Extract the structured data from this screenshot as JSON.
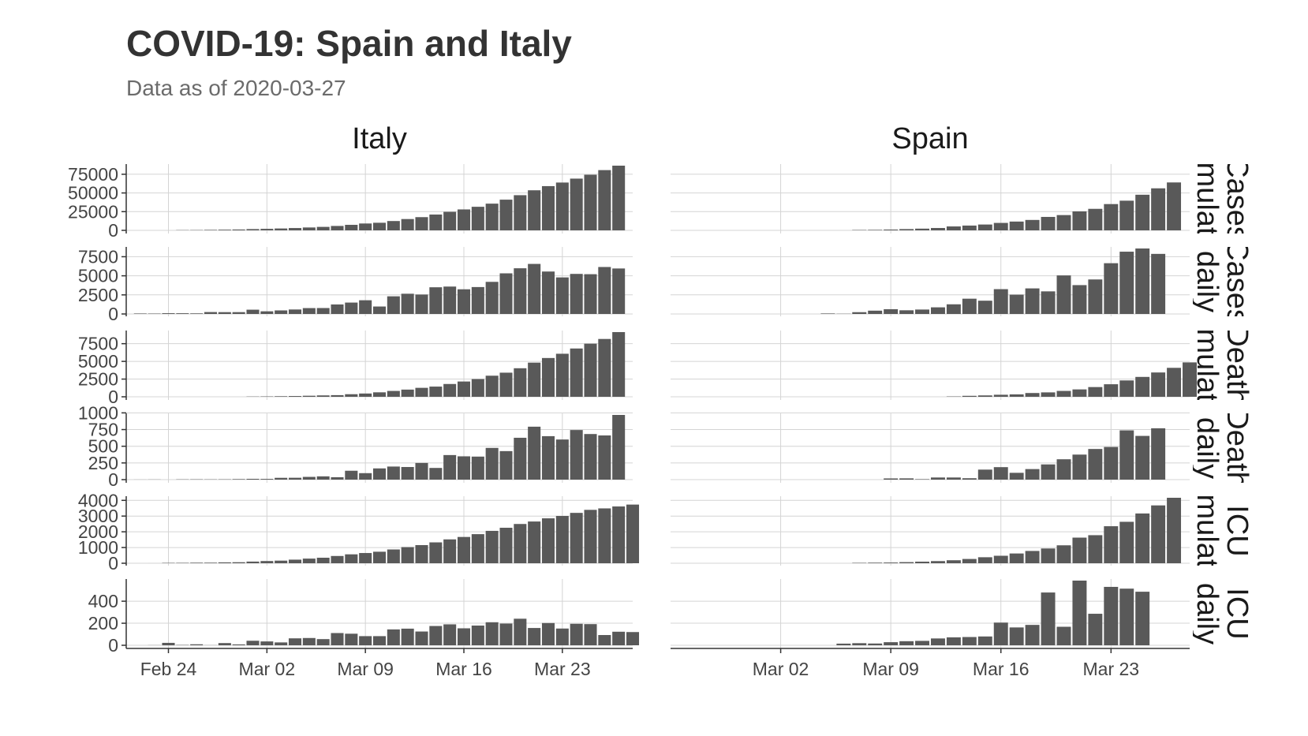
{
  "title": "COVID-19: Spain and Italy",
  "subtitle": "Data as of 2020-03-27",
  "chart_data": {
    "type": "bar",
    "bar_color": "#595959",
    "grid": true,
    "countries": [
      "Italy",
      "Spain"
    ],
    "rows": [
      {
        "label": "Cases cumulative",
        "strip_text": "Cases\nmulat",
        "yticks": [
          0,
          25000,
          50000,
          75000
        ],
        "ylim": [
          0,
          86498
        ]
      },
      {
        "label": "Cases daily",
        "strip_text": "Cases\ndaily",
        "yticks": [
          0,
          2500,
          5000,
          7500
        ],
        "ylim": [
          0,
          8578
        ]
      },
      {
        "label": "Deaths cumulative",
        "strip_text": "Death\nmulat",
        "yticks": [
          0,
          2500,
          5000,
          7500
        ],
        "ylim": [
          0,
          9134
        ]
      },
      {
        "label": "Deaths daily",
        "strip_text": "Death\ndaily",
        "yticks": [
          0,
          250,
          500,
          750,
          1000
        ],
        "ylim": [
          0,
          969
        ]
      },
      {
        "label": "ICU cumulative",
        "strip_text": "ICU\nmulat",
        "yticks": [
          0,
          1000,
          2000,
          3000,
          4000
        ],
        "ylim": [
          0,
          4165
        ]
      },
      {
        "label": "ICU daily",
        "strip_text": "ICU\ndaily",
        "yticks": [
          0,
          200,
          400
        ],
        "ylim": [
          0,
          587
        ]
      }
    ],
    "x_ticks": [
      "Feb 24",
      "Mar 02",
      "Mar 09",
      "Mar 16",
      "Mar 23"
    ],
    "panels": {
      "Italy": {
        "x_start": "2020-02-21",
        "x_end": "2020-03-28",
        "series": [
          {
            "row": "Cases cumulative",
            "start": "2020-02-25",
            "values": [
              322,
              400,
              650,
              888,
              1128,
              1694,
              2036,
              2502,
              3089,
              3858,
              4636,
              5883,
              7375,
              9172,
              10149,
              12462,
              15113,
              17660,
              21157,
              24747,
              27980,
              31506,
              35713,
              41035,
              47021,
              53578,
              59138,
              63927,
              69176,
              74386,
              80539,
              86498
            ]
          },
          {
            "row": "Cases daily",
            "start": "2020-02-22",
            "values": [
              62,
              53,
              97,
              93,
              78,
              250,
              238,
              240,
              561,
              347,
              466,
              587,
              769,
              778,
              1247,
              1492,
              1797,
              977,
              2313,
              2651,
              2547,
              3497,
              3590,
              3233,
              3526,
              4207,
              5322,
              5986,
              6557,
              5560,
              4789,
              5249,
              5210,
              6153,
              5959
            ]
          },
          {
            "row": "Deaths cumulative",
            "start": "2020-03-01",
            "values": [
              34,
              52,
              79,
              107,
              148,
              197,
              233,
              366,
              463,
              631,
              827,
              1016,
              1266,
              1441,
              1809,
              2158,
              2503,
              2978,
              3405,
              4032,
              4825,
              5476,
              6077,
              6820,
              7503,
              8165,
              9134
            ]
          },
          {
            "row": "Deaths daily",
            "start": "2020-02-22",
            "values": [
              1,
              2,
              0,
              4,
              5,
              4,
              5,
              8,
              12,
              11,
              27,
              28,
              41,
              49,
              36,
              133,
              97,
              168,
              196,
              189,
              250,
              175,
              368,
              349,
              345,
              475,
              427,
              627,
              793,
              651,
              601,
              743,
              683,
              662,
              969
            ]
          },
          {
            "row": "ICU cumulative",
            "start": "2020-02-22",
            "values": [
              0,
              1,
              23,
              26,
              35,
              36,
              56,
              64,
              105,
              140,
              166,
              229,
              295,
              351,
              462,
              567,
              650,
              733,
              877,
              1028,
              1153,
              1328,
              1518,
              1672,
              1851,
              2060,
              2257,
              2498,
              2655,
              2857,
              3009,
              3204,
              3396,
              3489,
              3612,
              3732
            ]
          },
          {
            "row": "ICU daily",
            "start": "2020-02-22",
            "values": [
              0,
              1,
              22,
              3,
              9,
              1,
              20,
              8,
              41,
              35,
              26,
              63,
              66,
              56,
              111,
              105,
              83,
              83,
              144,
              151,
              125,
              175,
              190,
              154,
              179,
              209,
              197,
              241,
              157,
              202,
              152,
              195,
              192,
              93,
              123,
              120
            ]
          }
        ]
      },
      "Spain": {
        "x_start": "2020-02-24",
        "x_end": "2020-03-28",
        "series": [
          {
            "row": "Cases cumulative",
            "start": "2020-03-07",
            "values": [
              500,
              673,
              1073,
              1695,
              2277,
              3146,
              5232,
              6391,
              7798,
              9942,
              11748,
              13910,
              17963,
              20410,
              25374,
              28768,
              35136,
              39673,
              47610,
              56188,
              64059
            ]
          },
          {
            "row": "Cases daily",
            "start": "2020-03-05",
            "values": [
              65,
              28,
              235,
              433,
              622,
              482,
              581,
              869,
              1266,
              2000,
              1738,
              3251,
              2531,
              3350,
              2960,
              5051,
              3780,
              4521,
              6650,
              8160,
              8578,
              7871
            ]
          },
          {
            "row": "Deaths cumulative",
            "start": "2020-03-13",
            "values": [
              48,
              136,
              195,
              289,
              342,
              533,
              623,
              830,
              1043,
              1375,
              1772,
              2311,
              2808,
              3434,
              4089,
              4858
            ]
          },
          {
            "row": "Deaths daily",
            "start": "2020-03-09",
            "values": [
              18,
              19,
              7,
              32,
              32,
              21,
              150,
              187,
              102,
              158,
              228,
              305,
              375,
              459,
              489,
              738,
              655,
              769
            ]
          },
          {
            "row": "ICU cumulative",
            "start": "2020-03-07",
            "values": [
              26,
              37,
              45,
              71,
              101,
              136,
              190,
              272,
              382,
              476,
              621,
              782,
              939,
              1141,
              1630,
              1785,
              2355,
              2636,
              3166,
              3679,
              4165
            ]
          },
          {
            "row": "ICU daily",
            "start": "2020-03-06",
            "values": [
              15,
              19,
              16,
              28,
              37,
              40,
              62,
              72,
              75,
              80,
              206,
              162,
              185,
              479,
              168,
              587,
              286,
              530,
              514,
              486
            ]
          }
        ]
      }
    }
  }
}
